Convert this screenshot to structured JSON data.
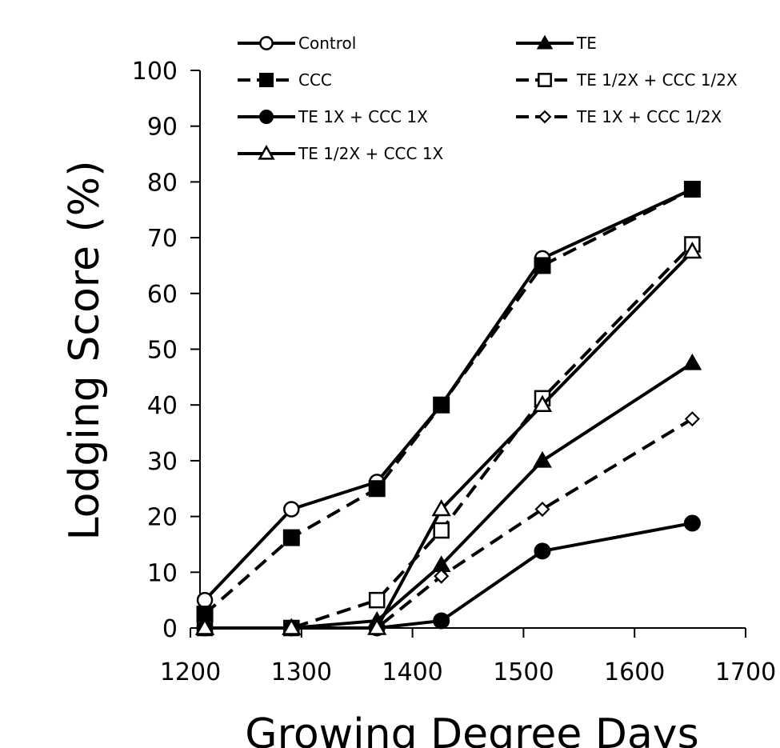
{
  "chart_data": {
    "type": "line",
    "title": "",
    "xlabel": "Growing Degree Days",
    "ylabel": "Lodging Score (%)",
    "xlim": [
      1200,
      1700
    ],
    "ylim": [
      0,
      100
    ],
    "xticks": [
      1200,
      1300,
      1400,
      1500,
      1600,
      1700
    ],
    "yticks": [
      0,
      10,
      20,
      30,
      40,
      50,
      60,
      70,
      80,
      90,
      100
    ],
    "grid": false,
    "legend_position": "top",
    "series": [
      {
        "name": "Control",
        "marker": "circle-open",
        "dash": "solid",
        "points": [
          [
            1213,
            5
          ],
          [
            1291,
            21.3
          ],
          [
            1368,
            26.2
          ],
          [
            1426,
            40
          ],
          [
            1517,
            66.3
          ],
          [
            1652,
            78.7
          ]
        ]
      },
      {
        "name": "TE",
        "marker": "triangle-filled",
        "dash": "solid",
        "points": [
          [
            1213,
            0
          ],
          [
            1291,
            0
          ],
          [
            1368,
            1.3
          ],
          [
            1426,
            11.3
          ],
          [
            1517,
            30
          ],
          [
            1652,
            47.5
          ]
        ]
      },
      {
        "name": "CCC",
        "marker": "square-filled",
        "dash": "dashed",
        "points": [
          [
            1213,
            2.5
          ],
          [
            1291,
            16.2
          ],
          [
            1368,
            25
          ],
          [
            1426,
            40
          ],
          [
            1517,
            65
          ],
          [
            1652,
            78.7
          ]
        ]
      },
      {
        "name": "TE 1/2X  + CCC 1/2X",
        "marker": "square-open",
        "dash": "dashed",
        "points": [
          [
            1213,
            0
          ],
          [
            1291,
            0
          ],
          [
            1368,
            5
          ],
          [
            1426,
            17.5
          ],
          [
            1517,
            41.2
          ],
          [
            1652,
            68.8
          ]
        ]
      },
      {
        "name": "TE 1X  + CCC 1X",
        "marker": "circle-filled",
        "dash": "solid",
        "points": [
          [
            1213,
            0
          ],
          [
            1291,
            0
          ],
          [
            1368,
            0
          ],
          [
            1426,
            1.3
          ],
          [
            1517,
            13.8
          ],
          [
            1652,
            18.8
          ]
        ]
      },
      {
        "name": "TE 1X  + CCC 1/2X",
        "marker": "diamond-open",
        "dash": "dashed",
        "points": [
          [
            1213,
            0
          ],
          [
            1291,
            0
          ],
          [
            1368,
            0
          ],
          [
            1426,
            9.3
          ],
          [
            1517,
            21.3
          ],
          [
            1652,
            37.5
          ]
        ]
      },
      {
        "name": "TE 1/2X  + CCC 1X",
        "marker": "triangle-open",
        "dash": "solid",
        "points": [
          [
            1213,
            0
          ],
          [
            1291,
            0
          ],
          [
            1368,
            0
          ],
          [
            1426,
            21.3
          ],
          [
            1517,
            40
          ],
          [
            1652,
            67.5
          ]
        ]
      }
    ]
  }
}
